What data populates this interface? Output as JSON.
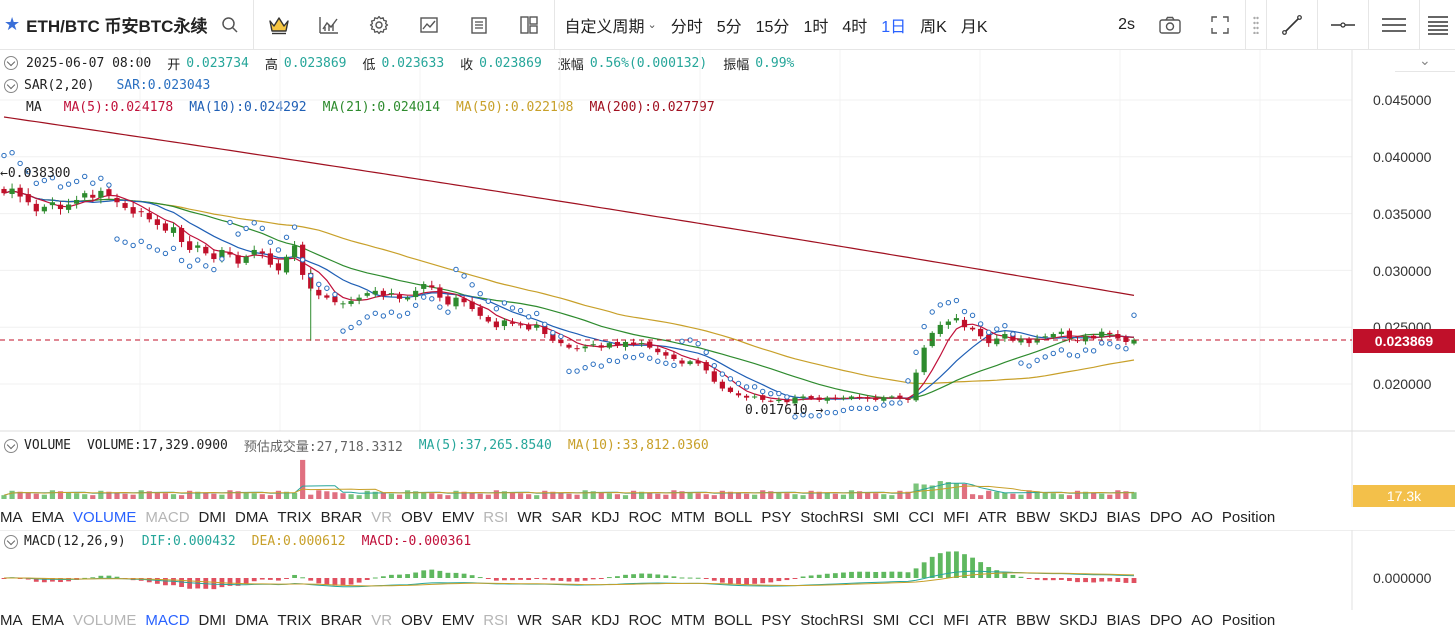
{
  "toolbar": {
    "symbol": "ETH/BTC 币安BTC永续",
    "custom_period": "自定义周期",
    "intervals": [
      "分时",
      "5分",
      "15分",
      "1时",
      "4时",
      "1日",
      "周K",
      "月K"
    ],
    "active_interval": "1日",
    "refresh": "2s"
  },
  "ohlc_legend": {
    "date": "2025-06-07 08:00",
    "open_label": "开",
    "open": "0.023734",
    "high_label": "高",
    "high": "0.023869",
    "low_label": "低",
    "low": "0.023633",
    "close_label": "收",
    "close": "0.023869",
    "change_label": "涨幅",
    "change": "0.56%(0.000132)",
    "amp_label": "振幅",
    "amp": "0.99%"
  },
  "sar_legend": {
    "name": "SAR(2,20)",
    "value": "SAR:0.023043"
  },
  "ma_legend": {
    "name": "MA",
    "ma5": "MA(5):0.024178",
    "ma10": "MA(10):0.024292",
    "ma21": "MA(21):0.024014",
    "ma50": "MA(50):0.022108",
    "ma200": "MA(200):0.027797"
  },
  "price_axis": [
    "0.045000",
    "0.040000",
    "0.035000",
    "0.030000",
    "0.025000",
    "0.020000"
  ],
  "last_price": "0.023869",
  "price_annotations": {
    "high": "0.038300",
    "low": "0.017610"
  },
  "volume_legend": {
    "name": "VOLUME",
    "value": "VOLUME:17,329.0900",
    "est": "预估成交量:27,718.3312",
    "ma5": "MA(5):37,265.8540",
    "ma10": "MA(10):33,812.0360"
  },
  "volume_tag": "17.3k",
  "indicator_tabs": [
    "MA",
    "EMA",
    "VOLUME",
    "MACD",
    "DMI",
    "DMA",
    "TRIX",
    "BRAR",
    "VR",
    "OBV",
    "EMV",
    "RSI",
    "WR",
    "SAR",
    "KDJ",
    "ROC",
    "MTM",
    "BOLL",
    "PSY",
    "StochRSI",
    "SMI",
    "CCI",
    "MFI",
    "ATR",
    "BBW",
    "SKDJ",
    "BIAS",
    "DPO",
    "AO",
    "Position"
  ],
  "macd_legend": {
    "name": "MACD(12,26,9)",
    "dif": "DIF:0.000432",
    "dea": "DEA:0.000612",
    "macd": "MACD:-0.000361"
  },
  "macd_axis": "0.000000",
  "colors": {
    "up": "#2e8b2e",
    "down": "#c0102a",
    "ma5": "#c0103a",
    "ma10": "#1f5fb5",
    "ma21": "#2e8b2e",
    "ma50": "#c8a02a",
    "ma200": "#a01020",
    "sar": "#2a6fc0",
    "accent": "#2962ff"
  },
  "chart_data": {
    "type": "candlestick",
    "symbol": "ETH/BTC",
    "interval": "1日",
    "ylim": [
      0.0165,
      0.0485
    ],
    "closes": [
      0.0368,
      0.0372,
      0.0365,
      0.036,
      0.0352,
      0.0356,
      0.036,
      0.0354,
      0.0358,
      0.0362,
      0.0368,
      0.0364,
      0.037,
      0.0366,
      0.036,
      0.0355,
      0.035,
      0.0352,
      0.0345,
      0.034,
      0.0335,
      0.0338,
      0.0325,
      0.0318,
      0.0322,
      0.0315,
      0.031,
      0.0318,
      0.0314,
      0.0306,
      0.0312,
      0.0318,
      0.0315,
      0.0305,
      0.03,
      0.0312,
      0.0322,
      0.0296,
      0.0284,
      0.0278,
      0.0276,
      0.0272,
      0.0271,
      0.0273,
      0.0276,
      0.028,
      0.0282,
      0.0278,
      0.028,
      0.0275,
      0.0276,
      0.0282,
      0.0288,
      0.0285,
      0.0276,
      0.027,
      0.0276,
      0.0272,
      0.0266,
      0.026,
      0.0255,
      0.025,
      0.0256,
      0.0253,
      0.0252,
      0.0248,
      0.0252,
      0.0244,
      0.0238,
      0.0236,
      0.0232,
      0.0231,
      0.0233,
      0.0235,
      0.0232,
      0.0236,
      0.0234,
      0.0237,
      0.0235,
      0.0236,
      0.0232,
      0.0228,
      0.0225,
      0.0222,
      0.0218,
      0.022,
      0.0218,
      0.0212,
      0.0202,
      0.0196,
      0.0193,
      0.019,
      0.0188,
      0.0189,
      0.0186,
      0.0185,
      0.0186,
      0.0184,
      0.0188,
      0.0189,
      0.0187,
      0.0186,
      0.0188,
      0.0187,
      0.0188,
      0.0189,
      0.0188,
      0.0187,
      0.0186,
      0.0188,
      0.0189,
      0.0188,
      0.0186,
      0.021,
      0.0232,
      0.0245,
      0.0252,
      0.0255,
      0.0258,
      0.025,
      0.0248,
      0.0242,
      0.0236,
      0.024,
      0.0244,
      0.0238,
      0.024,
      0.0236,
      0.024,
      0.0242,
      0.0244,
      0.0246,
      0.024,
      0.0238,
      0.0242,
      0.024,
      0.0246,
      0.0244,
      0.024,
      0.0237,
      0.0239
    ],
    "ma200_start": 0.0435,
    "ma200_end": 0.0278,
    "ma50_end": 0.02211,
    "volume_spike_index": 37
  }
}
